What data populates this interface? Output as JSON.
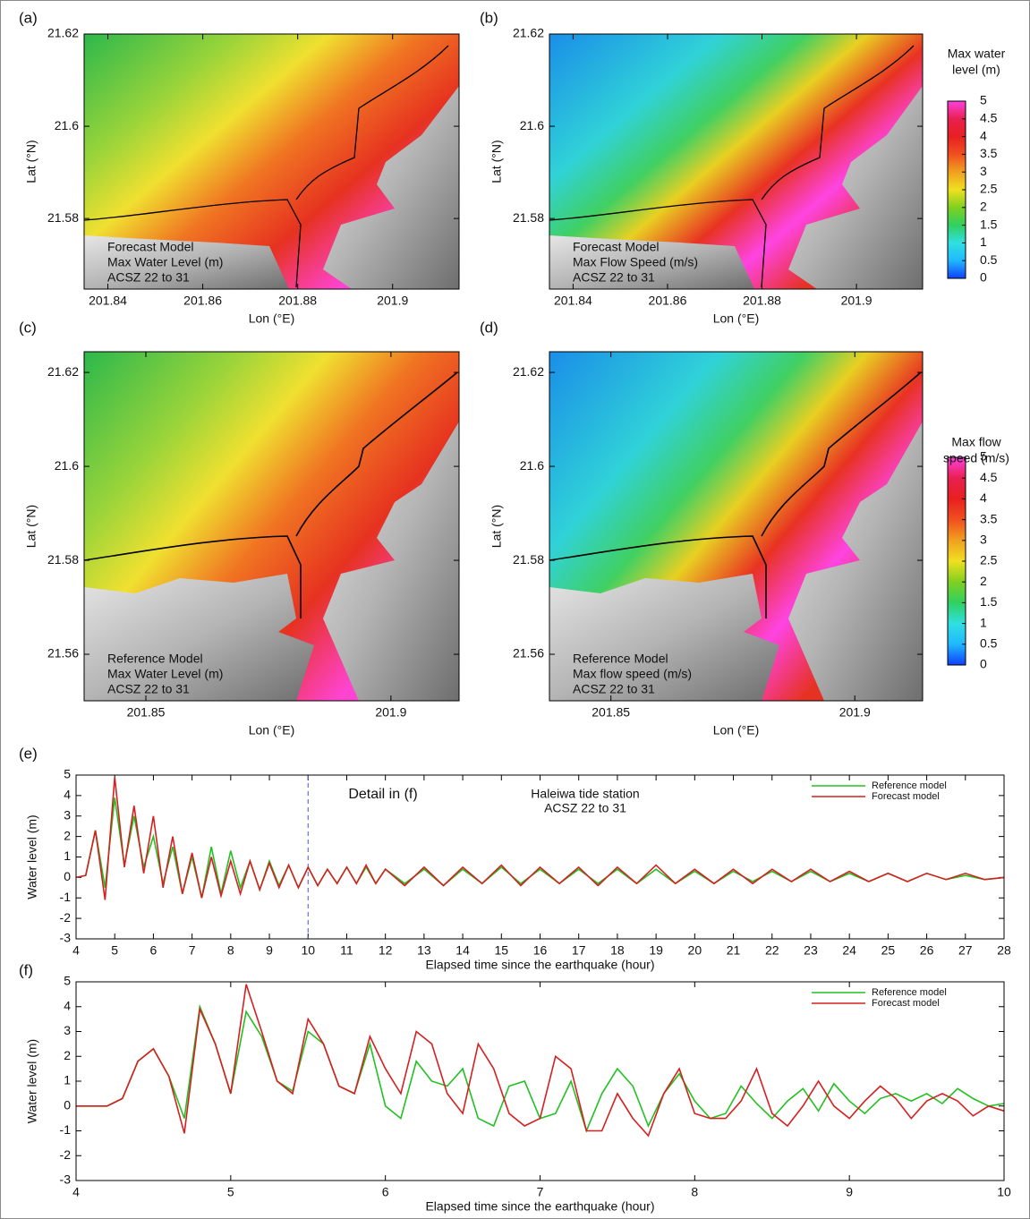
{
  "chart_data": [
    {
      "type": "map",
      "panel_label": "(a)",
      "xlabel": "Lon (°E)",
      "ylabel": "Lat (°N)",
      "xlim": [
        201.835,
        201.914
      ],
      "ylim": [
        21.5647,
        21.62
      ],
      "xticks": [
        201.84,
        201.86,
        201.88,
        201.9
      ],
      "yticks": [
        21.58,
        21.6,
        21.62
      ],
      "annotation": [
        "Forecast Model",
        "Max Water Level (m)",
        "ACSZ 22 to 31"
      ]
    },
    {
      "type": "map",
      "panel_label": "(b)",
      "xlabel": "Lon (°E)",
      "ylabel": "Lat (°N)",
      "xlim": [
        201.835,
        201.914
      ],
      "ylim": [
        21.5647,
        21.62
      ],
      "xticks": [
        201.84,
        201.86,
        201.88,
        201.9
      ],
      "yticks": [
        21.58,
        21.6,
        21.62
      ],
      "annotation": [
        "Forecast Model",
        "Max Flow Speed (m/s)",
        "ACSZ 22 to 31"
      ]
    },
    {
      "type": "map",
      "panel_label": "(c)",
      "xlabel": "Lon (°E)",
      "ylabel": "Lat (°N)",
      "xlim": [
        201.8374,
        201.9139
      ],
      "ylim": [
        21.5501,
        21.6244
      ],
      "xticks": [
        201.85,
        201.9
      ],
      "yticks": [
        21.56,
        21.58,
        21.6,
        21.62
      ],
      "annotation": [
        "Reference Model",
        "Max Water Level (m)",
        "ACSZ 22 to 31"
      ]
    },
    {
      "type": "map",
      "panel_label": "(d)",
      "xlabel": "Lon (°E)",
      "ylabel": "Lat (°N)",
      "xlim": [
        201.8374,
        201.9139
      ],
      "ylim": [
        21.5501,
        21.6244
      ],
      "xticks": [
        201.85,
        201.9
      ],
      "yticks": [
        21.56,
        21.58,
        21.6,
        21.62
      ],
      "annotation": [
        "Reference Model",
        "Max flow speed (m/s)",
        "ACSZ 22 to 31"
      ]
    },
    {
      "type": "colorbar",
      "title": [
        "Max water",
        "level (m)"
      ],
      "ylim": [
        0,
        5
      ],
      "yticks": [
        0,
        0.5,
        1,
        1.5,
        2,
        2.5,
        3,
        3.5,
        4,
        4.5,
        5
      ]
    },
    {
      "type": "colorbar",
      "title": [
        "Max flow",
        "speed (m/s)"
      ],
      "ylim": [
        0,
        5
      ],
      "yticks": [
        0,
        0.5,
        1,
        1.5,
        2,
        2.5,
        3,
        3.5,
        4,
        4.5,
        5
      ]
    },
    {
      "type": "line",
      "panel_label": "(e)",
      "xlabel": "Elapsed time since the earthquake (hour)",
      "ylabel": "Water level (m)",
      "annotation": [
        "Detail in (f)",
        "Haleiwa tide station",
        "ACSZ 22 to 31"
      ],
      "vline": {
        "x": 10,
        "color": "#4a4af0"
      },
      "xlim": [
        4,
        28
      ],
      "ylim": [
        -3,
        5
      ],
      "xticks": [
        4,
        5,
        6,
        7,
        8,
        9,
        10,
        11,
        12,
        13,
        14,
        15,
        16,
        17,
        18,
        19,
        20,
        21,
        22,
        23,
        24,
        25,
        26,
        27,
        28
      ],
      "yticks": [
        -3,
        -2,
        -1,
        0,
        1,
        2,
        3,
        4,
        5
      ],
      "x": [
        4,
        4.25,
        4.5,
        4.75,
        5,
        5.25,
        5.5,
        5.75,
        6,
        6.25,
        6.5,
        6.75,
        7,
        7.25,
        7.5,
        7.75,
        8,
        8.25,
        8.5,
        8.75,
        9,
        9.25,
        9.5,
        9.75,
        10,
        10.25,
        10.5,
        10.75,
        11,
        11.25,
        11.5,
        11.75,
        12,
        12.5,
        13,
        13.5,
        14,
        14.5,
        15,
        15.5,
        16,
        16.5,
        17,
        17.5,
        18,
        18.5,
        19,
        19.5,
        20,
        20.5,
        21,
        21.5,
        22,
        22.5,
        23,
        23.5,
        24,
        24.5,
        25,
        25.5,
        26,
        26.5,
        27,
        27.5,
        28
      ],
      "series": [
        {
          "name": "Reference model",
          "color": "#22c022",
          "values": [
            0,
            0.1,
            2.3,
            -0.5,
            3.9,
            0.6,
            3,
            0.5,
            2,
            -0.3,
            1.5,
            -0.8,
            1,
            -1,
            1.5,
            -0.8,
            1.3,
            -0.5,
            0.8,
            -0.6,
            0.8,
            -0.4,
            0.6,
            -0.5,
            0.5,
            -0.4,
            0.4,
            -0.3,
            0.5,
            -0.3,
            0.5,
            -0.3,
            0.4,
            -0.3,
            0.4,
            -0.4,
            0.4,
            -0.3,
            0.5,
            -0.3,
            0.4,
            -0.3,
            0.4,
            -0.3,
            0.4,
            -0.3,
            0.4,
            -0.3,
            0.3,
            -0.3,
            0.3,
            -0.2,
            0.3,
            -0.2,
            0.3,
            -0.2,
            0.2,
            -0.2,
            0.2,
            -0.2,
            0.2,
            -0.1,
            0.1,
            -0.1,
            0
          ]
        },
        {
          "name": "Forecast model",
          "color": "#d42020",
          "values": [
            0,
            0.1,
            2.3,
            -1.1,
            4.9,
            0.5,
            3.5,
            0.2,
            3,
            -0.5,
            2,
            -0.8,
            1.2,
            -1,
            1,
            -0.9,
            0.8,
            -0.8,
            0.8,
            -0.6,
            0.7,
            -0.5,
            0.6,
            -0.5,
            0.5,
            -0.4,
            0.4,
            -0.3,
            0.5,
            -0.3,
            0.6,
            -0.3,
            0.4,
            -0.4,
            0.5,
            -0.4,
            0.5,
            -0.3,
            0.6,
            -0.4,
            0.5,
            -0.3,
            0.5,
            -0.4,
            0.5,
            -0.3,
            0.6,
            -0.3,
            0.4,
            -0.3,
            0.4,
            -0.3,
            0.4,
            -0.2,
            0.4,
            -0.2,
            0.3,
            -0.2,
            0.2,
            -0.2,
            0.2,
            -0.1,
            0.2,
            -0.1,
            0
          ]
        }
      ]
    },
    {
      "type": "line",
      "panel_label": "(f)",
      "xlabel": "Elapsed time since the earthquake (hour)",
      "ylabel": "Water level (m)",
      "xlim": [
        4,
        10
      ],
      "ylim": [
        -3,
        5
      ],
      "xticks": [
        4,
        5,
        6,
        7,
        8,
        9,
        10
      ],
      "yticks": [
        -3,
        -2,
        -1,
        0,
        1,
        2,
        3,
        4,
        5
      ],
      "x": [
        4,
        4.1,
        4.2,
        4.3,
        4.4,
        4.5,
        4.6,
        4.7,
        4.8,
        4.9,
        5,
        5.1,
        5.2,
        5.3,
        5.4,
        5.5,
        5.6,
        5.7,
        5.8,
        5.9,
        6,
        6.1,
        6.2,
        6.3,
        6.4,
        6.5,
        6.6,
        6.7,
        6.8,
        6.9,
        7,
        7.1,
        7.2,
        7.3,
        7.4,
        7.5,
        7.6,
        7.7,
        7.8,
        7.9,
        8,
        8.1,
        8.2,
        8.3,
        8.4,
        8.5,
        8.6,
        8.7,
        8.8,
        8.9,
        9,
        9.1,
        9.2,
        9.3,
        9.4,
        9.5,
        9.6,
        9.7,
        9.8,
        9.9,
        10
      ],
      "series": [
        {
          "name": "Reference model",
          "color": "#22c022",
          "values": [
            0,
            0,
            0,
            0.3,
            1.8,
            2.3,
            1.2,
            -0.5,
            4,
            2.5,
            0.5,
            3.8,
            2.8,
            1,
            0.6,
            3,
            2.5,
            0.8,
            0.5,
            2.5,
            0,
            -0.5,
            1.8,
            1,
            0.8,
            1.5,
            -0.5,
            -0.8,
            0.8,
            1,
            -0.5,
            -0.3,
            1,
            -1,
            0.5,
            1.5,
            0.8,
            -0.8,
            0.5,
            1.3,
            0.2,
            -0.5,
            -0.3,
            0.8,
            0.1,
            -0.5,
            0.2,
            0.7,
            -0.2,
            0.9,
            0.2,
            -0.3,
            0.3,
            0.5,
            0.2,
            0.5,
            0.1,
            0.7,
            0.3,
            0,
            0.1
          ]
        },
        {
          "name": "Forecast model",
          "color": "#d42020",
          "values": [
            0,
            0,
            0,
            0.3,
            1.8,
            2.3,
            1.2,
            -1.1,
            3.9,
            2.5,
            0.5,
            4.9,
            3,
            1,
            0.5,
            3.5,
            2.5,
            0.8,
            0.5,
            2.8,
            1.5,
            0.5,
            3,
            2.5,
            0.5,
            -0.3,
            2.5,
            1.5,
            -0.3,
            -0.8,
            -0.5,
            2,
            1.5,
            -1,
            -1,
            0.5,
            -0.5,
            -1.2,
            0.5,
            1.5,
            -0.3,
            -0.5,
            -0.5,
            0.2,
            1.5,
            -0.3,
            -0.8,
            0,
            1,
            0,
            -0.5,
            0.2,
            0.8,
            0.3,
            -0.5,
            0.2,
            0.5,
            0.2,
            -0.4,
            0,
            -0.2
          ]
        }
      ]
    }
  ]
}
